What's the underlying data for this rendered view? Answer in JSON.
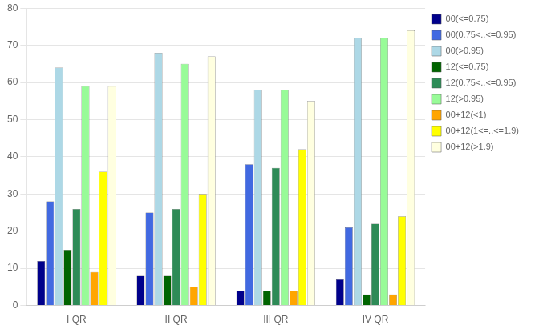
{
  "chart_data": {
    "type": "bar",
    "categories": [
      "I QR",
      "II QR",
      "III QR",
      "IV QR"
    ],
    "series": [
      {
        "name": "00(<=0.75)",
        "color": "#00008B",
        "values": [
          12,
          8,
          4,
          7
        ]
      },
      {
        "name": "00(0.75<..<=0.95)",
        "color": "#4169E1",
        "values": [
          28,
          25,
          38,
          21
        ]
      },
      {
        "name": "00(>0.95)",
        "color": "#ADD8E6",
        "values": [
          64,
          68,
          58,
          72
        ]
      },
      {
        "name": "12(<=0.75)",
        "color": "#006400",
        "values": [
          15,
          8,
          4,
          3
        ]
      },
      {
        "name": "12(0.75<..<=0.95)",
        "color": "#2E8B57",
        "values": [
          26,
          26,
          37,
          22
        ]
      },
      {
        "name": "12(>0.95)",
        "color": "#98FB98",
        "values": [
          59,
          65,
          58,
          72
        ]
      },
      {
        "name": "00+12(<1)",
        "color": "#FFA500",
        "values": [
          9,
          5,
          4,
          3
        ]
      },
      {
        "name": "00+12(1<=..<=1.9)",
        "color": "#FFFF00",
        "values": [
          36,
          30,
          42,
          24
        ]
      },
      {
        "name": "00+12(>1.9)",
        "color": "#FFFFE0",
        "values": [
          59,
          67,
          55,
          74
        ]
      }
    ],
    "ylim": [
      0,
      80
    ],
    "yticks": [
      0,
      10,
      20,
      30,
      40,
      50,
      60,
      70,
      80
    ],
    "grid": true,
    "legend": "right"
  }
}
